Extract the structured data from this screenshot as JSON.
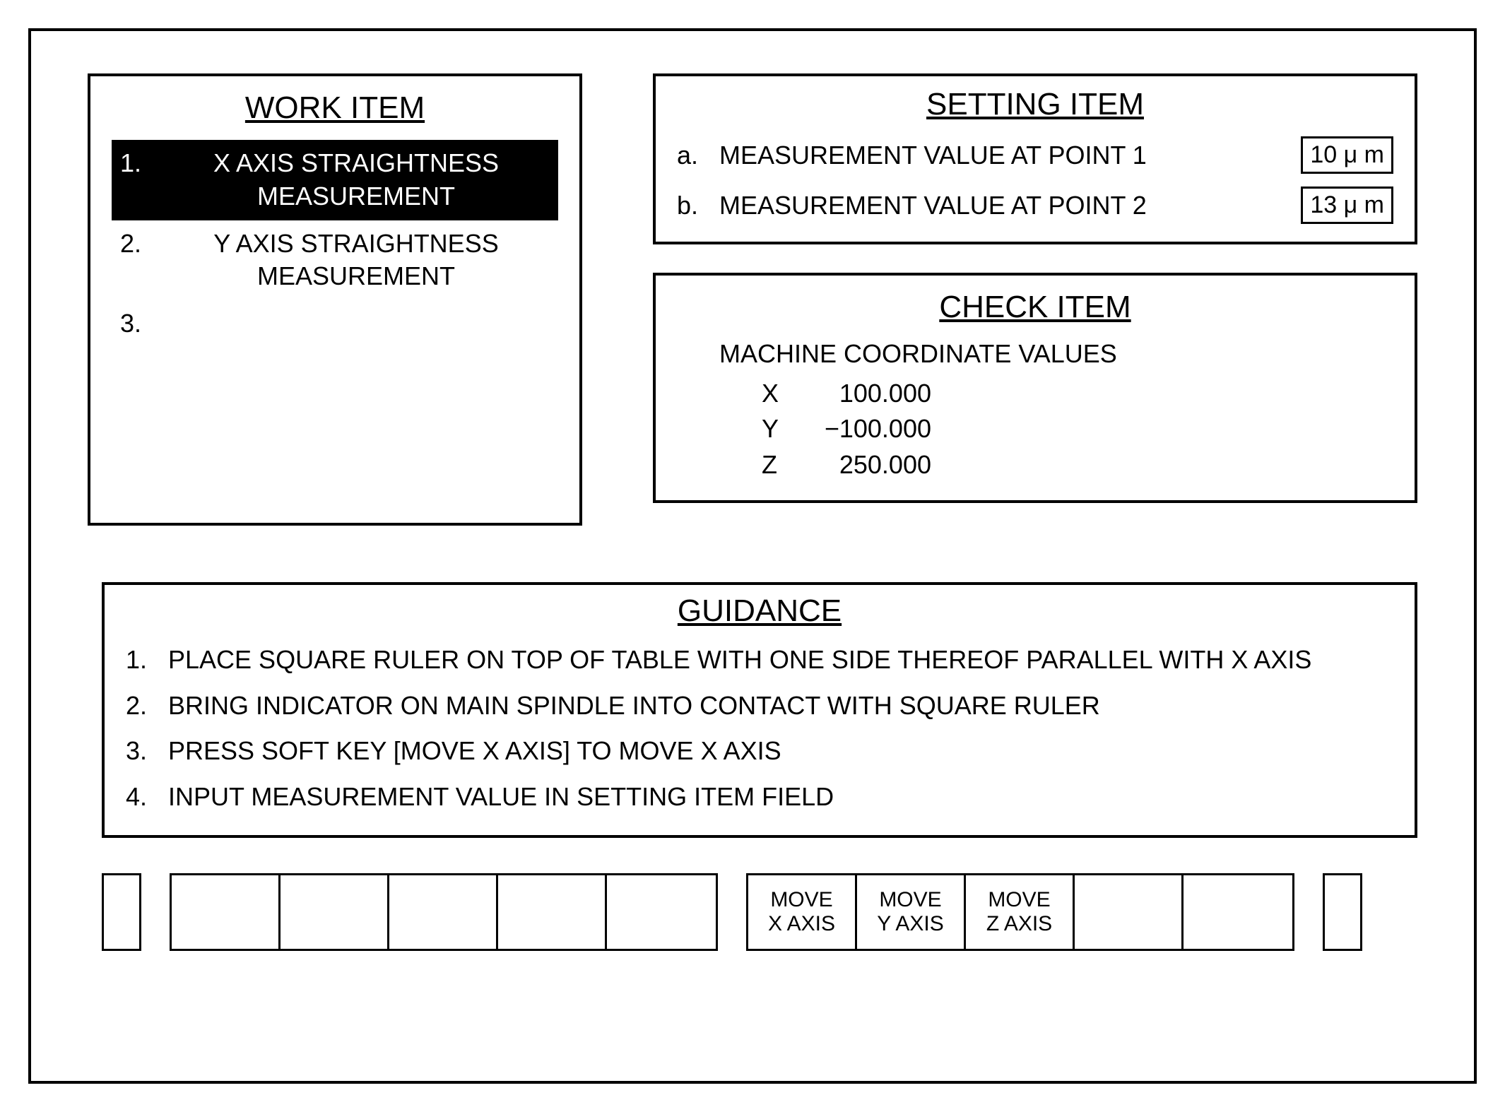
{
  "work_item": {
    "title": "WORK ITEM",
    "items": [
      {
        "num": "1.",
        "text": "X AXIS STRAIGHTNESS MEASUREMENT",
        "selected": true
      },
      {
        "num": "2.",
        "text": "Y AXIS STRAIGHTNESS MEASUREMENT",
        "selected": false
      },
      {
        "num": "3.",
        "text": "",
        "selected": false
      }
    ]
  },
  "setting_item": {
    "title": "SETTING ITEM",
    "rows": [
      {
        "letter": "a.",
        "label": "MEASUREMENT VALUE AT POINT 1",
        "value": "10 μ m"
      },
      {
        "letter": "b.",
        "label": "MEASUREMENT VALUE AT POINT 2",
        "value": "13 μ m"
      }
    ]
  },
  "check_item": {
    "title": "CHECK ITEM",
    "subtitle": "MACHINE COORDINATE VALUES",
    "coords": [
      {
        "axis": "X",
        "value": "100.000"
      },
      {
        "axis": "Y",
        "value": "−100.000"
      },
      {
        "axis": "Z",
        "value": "250.000"
      }
    ]
  },
  "guidance": {
    "title": "GUIDANCE",
    "steps": [
      {
        "num": "1.",
        "text": "PLACE SQUARE RULER ON TOP OF TABLE WITH ONE SIDE THEREOF PARALLEL WITH X AXIS"
      },
      {
        "num": "2.",
        "text": "BRING INDICATOR ON MAIN SPINDLE INTO CONTACT WITH SQUARE RULER"
      },
      {
        "num": "3.",
        "text": "PRESS SOFT KEY [MOVE X AXIS] TO MOVE X AXIS"
      },
      {
        "num": "4.",
        "text": "INPUT MEASUREMENT VALUE IN SETTING ITEM FIELD"
      }
    ]
  },
  "softkeys": {
    "left_group": [
      "",
      "",
      "",
      "",
      ""
    ],
    "right_group": [
      "MOVE\nX AXIS",
      "MOVE\nY AXIS",
      "MOVE\nZ AXIS",
      "",
      ""
    ]
  }
}
